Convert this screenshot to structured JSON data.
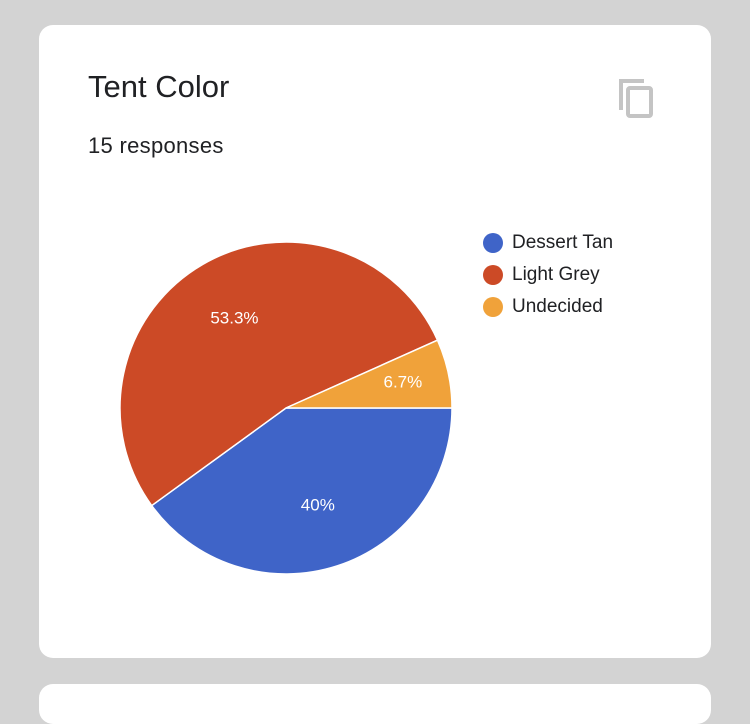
{
  "card": {
    "title": "Tent Color",
    "subtitle": "15 responses"
  },
  "icons": {
    "copy": "copy-icon"
  },
  "chart_data": {
    "type": "pie",
    "categories": [
      "Dessert Tan",
      "Light Grey",
      "Undecided"
    ],
    "values": [
      40,
      53.3,
      6.7
    ],
    "labels": [
      "40%",
      "53.3%",
      "6.7%"
    ],
    "colors": [
      "#3f64c8",
      "#cc4a26",
      "#f0a23a"
    ],
    "legend_position": "right"
  }
}
